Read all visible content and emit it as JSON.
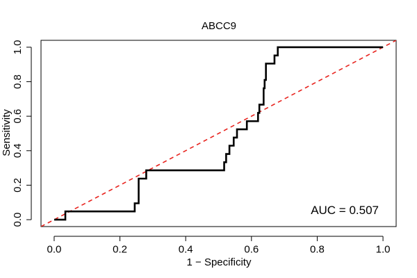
{
  "chart_data": {
    "type": "line",
    "title": "ABCC9",
    "xlabel": "1 − Specificity",
    "ylabel": "Sensitivity",
    "xlim": [
      -0.04,
      1.04
    ],
    "ylim": [
      -0.04,
      1.04
    ],
    "x_ticks": [
      0.0,
      0.2,
      0.4,
      0.6,
      0.8,
      1.0
    ],
    "x_tick_labels": [
      "0.0",
      "0.2",
      "0.4",
      "0.6",
      "0.8",
      "1.0"
    ],
    "y_ticks": [
      0.0,
      0.2,
      0.4,
      0.6,
      0.8,
      1.0
    ],
    "y_tick_labels": [
      "0.0",
      "0.2",
      "0.4",
      "0.6",
      "0.8",
      "1.0"
    ],
    "annotation": "AUC = 0.507",
    "series": [
      {
        "name": "ROC curve",
        "color": "#000000",
        "style": "solid",
        "x": [
          0.0,
          0.034,
          0.034,
          0.245,
          0.245,
          0.257,
          0.257,
          0.28,
          0.28,
          0.517,
          0.517,
          0.523,
          0.523,
          0.533,
          0.533,
          0.546,
          0.546,
          0.556,
          0.556,
          0.586,
          0.586,
          0.62,
          0.62,
          0.624,
          0.624,
          0.637,
          0.637,
          0.64,
          0.64,
          0.644,
          0.644,
          0.67,
          0.67,
          0.68,
          0.68,
          1.0
        ],
        "y": [
          0.0,
          0.0,
          0.048,
          0.048,
          0.095,
          0.095,
          0.238,
          0.238,
          0.286,
          0.286,
          0.333,
          0.333,
          0.381,
          0.381,
          0.429,
          0.429,
          0.476,
          0.476,
          0.524,
          0.524,
          0.571,
          0.571,
          0.619,
          0.619,
          0.667,
          0.667,
          0.762,
          0.762,
          0.81,
          0.81,
          0.905,
          0.905,
          0.952,
          0.952,
          1.0,
          1.0
        ]
      },
      {
        "name": "Reference diagonal",
        "color": "#e8231e",
        "style": "dashed",
        "x": [
          -0.04,
          1.04
        ],
        "y": [
          -0.04,
          1.04
        ]
      }
    ]
  }
}
